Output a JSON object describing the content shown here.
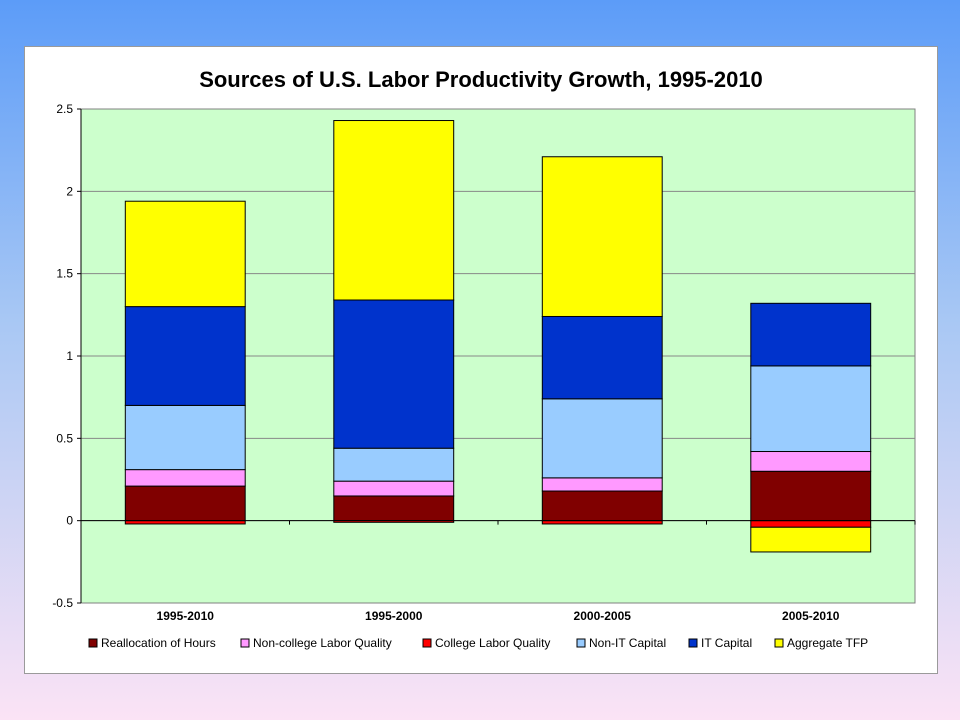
{
  "chart_data": {
    "type": "bar",
    "stacked": true,
    "title": "Sources of U.S. Labor Productivity Growth, 1995-2010",
    "xlabel": "",
    "ylabel": "",
    "ylim": [
      -0.5,
      2.5
    ],
    "yticks": [
      "-0.5",
      "0",
      "0.5",
      "1",
      "1.5",
      "2",
      "2.5"
    ],
    "categories": [
      "1995-2010",
      "1995-2000",
      "2000-2005",
      "2005-2010"
    ],
    "grid": true,
    "legend_position": "bottom",
    "plot_background": "#ccffcc",
    "series": [
      {
        "name": "Reallocation of Hours",
        "color": "#800000",
        "values": [
          0.21,
          0.15,
          0.18,
          0.3
        ]
      },
      {
        "name": "Non-college Labor Quality",
        "color": "#ff99ff",
        "values": [
          0.1,
          0.09,
          0.08,
          0.12
        ]
      },
      {
        "name": "College Labor Quality",
        "color": "#ff0000",
        "values": [
          -0.02,
          -0.01,
          -0.02,
          -0.04
        ]
      },
      {
        "name": "Non-IT Capital",
        "color": "#99ccff",
        "values": [
          0.39,
          0.2,
          0.48,
          0.52
        ]
      },
      {
        "name": "IT Capital",
        "color": "#0033cc",
        "values": [
          0.6,
          0.9,
          0.5,
          0.38
        ]
      },
      {
        "name": "Aggregate TFP",
        "color": "#ffff00",
        "values": [
          0.64,
          1.09,
          0.97,
          -0.15
        ]
      }
    ]
  }
}
